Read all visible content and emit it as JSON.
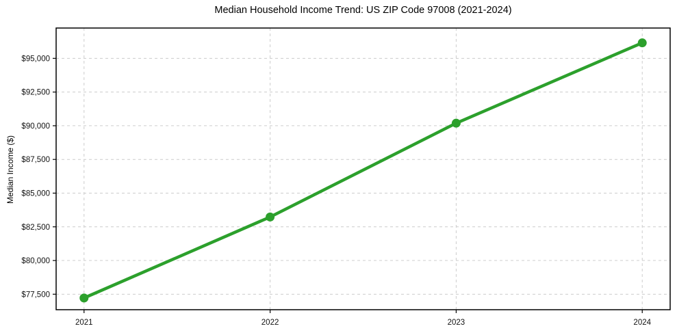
{
  "chart_data": {
    "type": "line",
    "title": "Median Household Income Trend: US ZIP Code 97008 (2021-2024)",
    "xlabel": "",
    "ylabel": "Median Income ($)",
    "x": [
      2021,
      2022,
      2023,
      2024
    ],
    "series": [
      {
        "name": "Median Household Income",
        "values": [
          77220,
          83230,
          90190,
          96150
        ]
      }
    ],
    "xticks": [
      2021,
      2022,
      2023,
      2024
    ],
    "xtick_labels": [
      "2021",
      "2022",
      "2023",
      "2024"
    ],
    "yticks": [
      77500,
      80000,
      82500,
      85000,
      87500,
      90000,
      92500,
      95000
    ],
    "ytick_labels": [
      "$77,500",
      "$80,000",
      "$82,500",
      "$85,000",
      "$87,500",
      "$90,000",
      "$92,500",
      "$95,000"
    ],
    "xlim": [
      2020.85,
      2024.15
    ],
    "ylim": [
      76350,
      97250
    ],
    "grid": "on",
    "grid_style": "dashed",
    "legend": "none",
    "colors": {
      "line": "#2ca02c",
      "marker": "#2ca02c",
      "grid": "#cccccc",
      "spine": "#000000",
      "tick_text": "#111111",
      "background": "#ffffff"
    }
  }
}
